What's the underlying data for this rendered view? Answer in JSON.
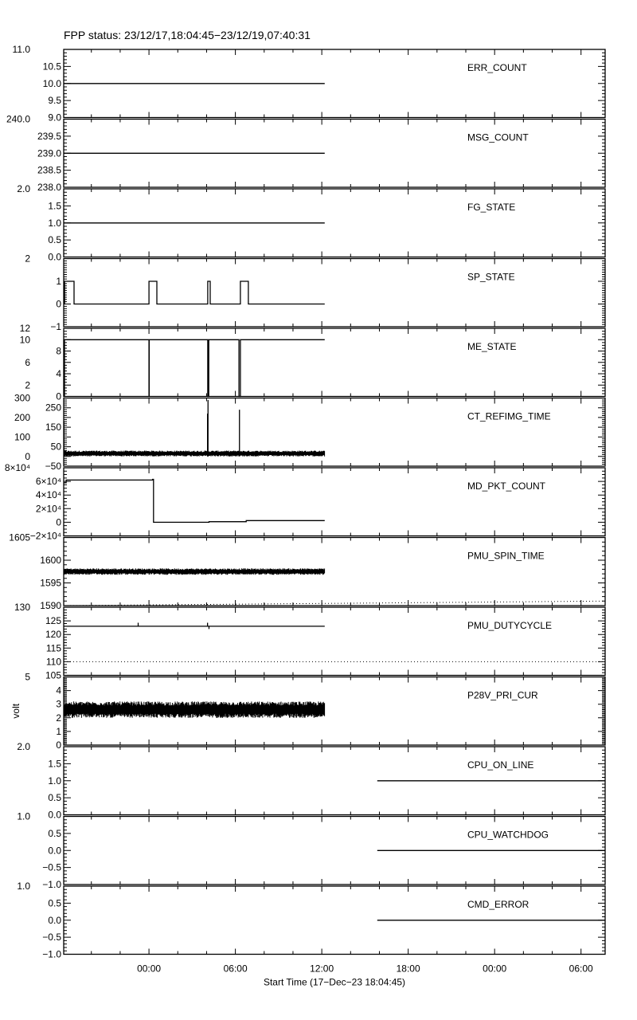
{
  "title": "FPP status: 23/12/17,18:04:45−23/12/19,07:40:31",
  "chart_data": {
    "type": "line",
    "title": "FPP status: 23/12/17,18:04:45−23/12/19,07:40:31",
    "xlabel": "Start Time (17−Dec−23 18:04:45)",
    "xlim": [
      "2023-12-17T18:04:45",
      "2023-12-19T07:40:31"
    ],
    "xticks": [
      {
        "t": "2023-12-18T00:00:00",
        "label": "00:00"
      },
      {
        "t": "2023-12-18T06:00:00",
        "label": "06:00"
      },
      {
        "t": "2023-12-18T12:00:00",
        "label": "12:00"
      },
      {
        "t": "2023-12-18T18:00:00",
        "label": "18:00"
      },
      {
        "t": "2023-12-19T00:00:00",
        "label": "00:00"
      },
      {
        "t": "2023-12-19T06:00:00",
        "label": "06:00"
      }
    ],
    "x_minor_tick_hours": 2,
    "line_color": "#000000",
    "panels": [
      {
        "name": "ERR_COUNT",
        "ylim": [
          9,
          11
        ],
        "yticks": [
          9,
          9.5,
          10,
          10.5,
          11
        ],
        "yticklabels": [
          "9.0",
          "9.5",
          "10.0",
          "10.5",
          "11.0"
        ],
        "minor": 5,
        "series": [
          {
            "points": [
              [
                "2023-12-17T18:04:45",
                10
              ],
              [
                "2023-12-18T12:12:00",
                10
              ]
            ]
          }
        ]
      },
      {
        "name": "MSG_COUNT",
        "ylim": [
          238,
          240
        ],
        "yticks": [
          238,
          238.5,
          239,
          239.5,
          240
        ],
        "yticklabels": [
          "238.0",
          "238.5",
          "239.0",
          "239.5",
          "240.0"
        ],
        "minor": 5,
        "series": [
          {
            "points": [
              [
                "2023-12-17T18:04:45",
                239
              ],
              [
                "2023-12-18T12:12:00",
                239
              ]
            ]
          }
        ]
      },
      {
        "name": "FG_STATE",
        "ylim": [
          0,
          2
        ],
        "yticks": [
          0,
          0.5,
          1,
          1.5,
          2
        ],
        "yticklabels": [
          "0.0",
          "0.5",
          "1.0",
          "1.5",
          "2.0"
        ],
        "minor": 5,
        "series": [
          {
            "points": [
              [
                "2023-12-17T18:04:45",
                1
              ],
              [
                "2023-12-18T12:12:00",
                1
              ]
            ]
          }
        ]
      },
      {
        "name": "SP_STATE",
        "ylim": [
          -1,
          2
        ],
        "yticks": [
          -1,
          0,
          1,
          2
        ],
        "yticklabels": [
          "−1",
          "0",
          "1",
          "2"
        ],
        "minor": 10,
        "series": [
          {
            "step": true,
            "points": [
              [
                "2023-12-17T18:04:45",
                1
              ],
              [
                "2023-12-17T18:05:30",
                0
              ],
              [
                "2023-12-17T18:06:30",
                1
              ],
              [
                "2023-12-17T18:07:30",
                0
              ],
              [
                "2023-12-17T18:08:30",
                1
              ],
              [
                "2023-12-17T18:48:00",
                0
              ],
              [
                "2023-12-18T00:00:00",
                1
              ],
              [
                "2023-12-18T00:33:00",
                0
              ],
              [
                "2023-12-18T04:05:00",
                1
              ],
              [
                "2023-12-18T04:15:00",
                0
              ],
              [
                "2023-12-18T06:21:00",
                1
              ],
              [
                "2023-12-18T06:54:00",
                0
              ],
              [
                "2023-12-18T12:12:00",
                0
              ]
            ]
          }
        ]
      },
      {
        "name": "ME_STATE",
        "ylim": [
          0,
          12
        ],
        "yticks": [
          0,
          2,
          4,
          6,
          8,
          10,
          12
        ],
        "yticklabels": [
          "0",
          "2",
          "4",
          "6",
          "8",
          "10",
          "12"
        ],
        "minor": 4,
        "series": [
          {
            "step": true,
            "points": [
              [
                "2023-12-17T18:04:45",
                10
              ],
              [
                "2023-12-17T18:05:00",
                0
              ],
              [
                "2023-12-17T18:06:30",
                10
              ],
              [
                "2023-12-17T18:07:00",
                0
              ],
              [
                "2023-12-17T18:08:00",
                10
              ],
              [
                "2023-12-18T00:00:00",
                0
              ],
              [
                "2023-12-18T00:01:00",
                10
              ],
              [
                "2023-12-18T04:05:00",
                0
              ],
              [
                "2023-12-18T04:09:00",
                10
              ],
              [
                "2023-12-18T06:15:00",
                0
              ],
              [
                "2023-12-18T06:21:00",
                10
              ],
              [
                "2023-12-18T12:12:00",
                10
              ]
            ]
          }
        ]
      },
      {
        "name": "CT_REFIMG_TIME",
        "ylim": [
          -50,
          300
        ],
        "yticks": [
          -50,
          0,
          50,
          100,
          150,
          200,
          250,
          300
        ],
        "yticklabels": [
          "−50",
          "0",
          "50",
          "100",
          "150",
          "200",
          "250",
          "300"
        ],
        "minor": 5,
        "noise": [
          {
            "t0": "2023-12-17T18:04:45",
            "t1": "2023-12-18T12:12:00",
            "band": [
              0,
              30
            ]
          }
        ],
        "spikes": [
          {
            "t": "2023-12-17T18:05:30",
            "base": 0,
            "v": 180
          },
          {
            "t": "2023-12-18T04:04:00",
            "base": 0,
            "v": 220
          },
          {
            "t": "2023-12-18T04:06:00",
            "base": 0,
            "v": 290
          },
          {
            "t": "2023-12-18T06:17:00",
            "base": 0,
            "v": 240
          }
        ]
      },
      {
        "name": "MD_PKT_COUNT",
        "ylim": [
          -20000,
          80000
        ],
        "yticks": [
          -20000,
          0,
          20000,
          40000,
          60000,
          80000
        ],
        "yticklabels": [
          "−2×10⁴",
          "0",
          "2×10⁴",
          "4×10⁴",
          "6×10⁴",
          "8×10⁴"
        ],
        "minor": 4,
        "series": [
          {
            "step": true,
            "points": [
              [
                "2023-12-17T18:04:45",
                58000
              ],
              [
                "2023-12-17T18:15:00",
                62000
              ],
              [
                "2023-12-18T00:15:00",
                63000
              ],
              [
                "2023-12-18T00:19:00",
                0
              ],
              [
                "2023-12-18T04:10:00",
                800
              ],
              [
                "2023-12-18T06:45:00",
                2500
              ],
              [
                "2023-12-18T12:12:00",
                2500
              ]
            ]
          }
        ]
      },
      {
        "name": "PMU_SPIN_TIME",
        "ylim": [
          1590,
          1605
        ],
        "yticks": [
          1590,
          1595,
          1600,
          1605
        ],
        "yticklabels": [
          "1590",
          "1595",
          "1600",
          "1605"
        ],
        "minor": 5,
        "noise": [
          {
            "t0": "2023-12-17T18:04:45",
            "t1": "2023-12-18T12:12:00",
            "band": [
              1596.8,
              1598.2
            ]
          }
        ],
        "limits": [
          {
            "points": [
              [
                "2023-12-17T18:04:45",
                1605
              ],
              [
                "2023-12-19T07:40:31",
                1605
              ]
            ]
          },
          {
            "points": [
              [
                "2023-12-17T18:04:45",
                1590
              ],
              [
                "2023-12-19T07:40:31",
                1591
              ]
            ]
          }
        ]
      },
      {
        "name": "PMU_DUTYCYCLE",
        "ylim": [
          105,
          130
        ],
        "yticks": [
          105,
          110,
          115,
          120,
          125,
          130
        ],
        "yticklabels": [
          "105",
          "110",
          "115",
          "120",
          "125",
          "130"
        ],
        "minor": 5,
        "series": [
          {
            "points": [
              [
                "2023-12-17T18:04:45",
                123
              ],
              [
                "2023-12-18T12:12:00",
                123
              ]
            ]
          }
        ],
        "spikes": [
          {
            "t": "2023-12-17T23:15:00",
            "base": 123,
            "v": 124.3
          },
          {
            "t": "2023-12-18T04:04:00",
            "base": 123,
            "v": 124.3
          },
          {
            "t": "2023-12-18T04:10:00",
            "base": 123,
            "v": 122
          }
        ],
        "limits": [
          {
            "points": [
              [
                "2023-12-17T18:04:45",
                110
              ],
              [
                "2023-12-19T07:40:31",
                110
              ]
            ]
          }
        ]
      },
      {
        "name": "P28V_PRI_CUR",
        "ylabel": "volt",
        "ylim": [
          0,
          5
        ],
        "yticks": [
          0,
          1,
          2,
          3,
          4,
          5
        ],
        "yticklabels": [
          "0",
          "1",
          "2",
          "3",
          "4",
          "5"
        ],
        "minor": 10,
        "noise": [
          {
            "t0": "2023-12-17T18:04:45",
            "t1": "2023-12-18T12:12:00",
            "band": [
              2.0,
              3.2
            ]
          }
        ]
      },
      {
        "name": "CPU_ON_LINE",
        "ylim": [
          0,
          2
        ],
        "yticks": [
          0,
          0.5,
          1,
          1.5,
          2
        ],
        "yticklabels": [
          "0.0",
          "0.5",
          "1.0",
          "1.5",
          "2.0"
        ],
        "minor": 5,
        "series": [
          {
            "points": [
              [
                "2023-12-18T15:51:00",
                1
              ],
              [
                "2023-12-19T07:40:31",
                1
              ]
            ]
          }
        ]
      },
      {
        "name": "CPU_WATCHDOG",
        "ylim": [
          -1,
          1
        ],
        "yticks": [
          -1,
          -0.5,
          0,
          0.5,
          1
        ],
        "yticklabels": [
          "−1.0",
          "−0.5",
          "0.0",
          "0.5",
          "1.0"
        ],
        "minor": 5,
        "series": [
          {
            "points": [
              [
                "2023-12-18T15:51:00",
                0
              ],
              [
                "2023-12-19T07:40:31",
                0
              ]
            ]
          }
        ]
      },
      {
        "name": "CMD_ERROR",
        "ylim": [
          -1,
          1
        ],
        "yticks": [
          -1,
          -0.5,
          0,
          0.5,
          1
        ],
        "yticklabels": [
          "−1.0",
          "−0.5",
          "0.0",
          "0.5",
          "1.0"
        ],
        "minor": 5,
        "series": [
          {
            "points": [
              [
                "2023-12-18T15:51:00",
                0
              ],
              [
                "2023-12-19T07:40:31",
                0
              ]
            ]
          }
        ]
      }
    ]
  }
}
